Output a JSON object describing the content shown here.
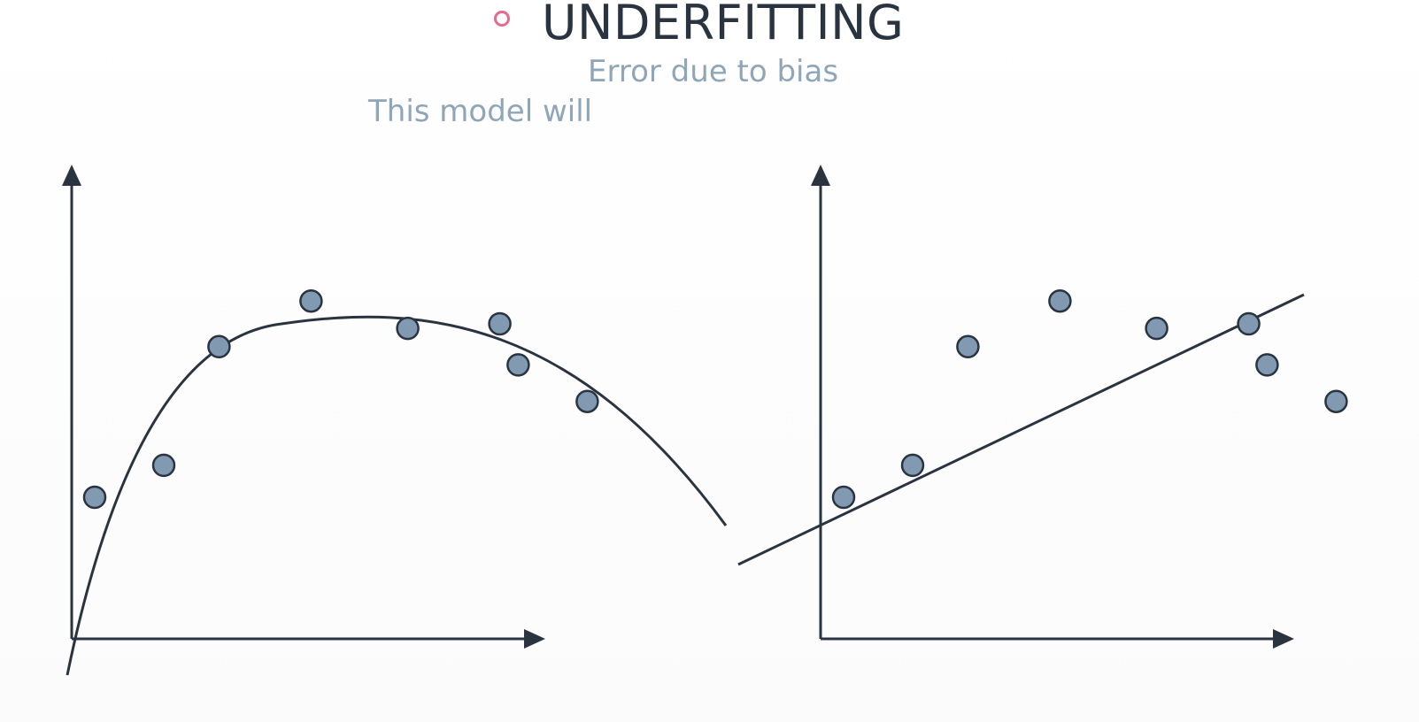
{
  "slide": {
    "title": "UNDERFITTING",
    "subtitle": "Error due to bias",
    "caption": "This model will"
  },
  "colors": {
    "bullet": "#e46a8e",
    "title": "#2a3441",
    "muted_text": "#8fa5b8",
    "axis": "#2a3441",
    "point_fill": "#8199b1",
    "point_stroke": "#2a3441"
  },
  "icons": {
    "bullet": "circle-outline-icon"
  },
  "panels": [
    {
      "name": "curve-fit",
      "model": "curve",
      "points": [
        {
          "x": 0.05,
          "y": 0.31
        },
        {
          "x": 0.2,
          "y": 0.38
        },
        {
          "x": 0.32,
          "y": 0.64
        },
        {
          "x": 0.52,
          "y": 0.74
        },
        {
          "x": 0.73,
          "y": 0.68
        },
        {
          "x": 0.93,
          "y": 0.69
        },
        {
          "x": 0.97,
          "y": 0.6
        },
        {
          "x": 1.12,
          "y": 0.52
        }
      ]
    },
    {
      "name": "line-fit",
      "model": "line",
      "points": [
        {
          "x": 0.05,
          "y": 0.31
        },
        {
          "x": 0.2,
          "y": 0.38
        },
        {
          "x": 0.32,
          "y": 0.64
        },
        {
          "x": 0.52,
          "y": 0.74
        },
        {
          "x": 0.73,
          "y": 0.68
        },
        {
          "x": 0.93,
          "y": 0.69
        },
        {
          "x": 0.97,
          "y": 0.6
        },
        {
          "x": 1.12,
          "y": 0.52
        }
      ]
    }
  ]
}
